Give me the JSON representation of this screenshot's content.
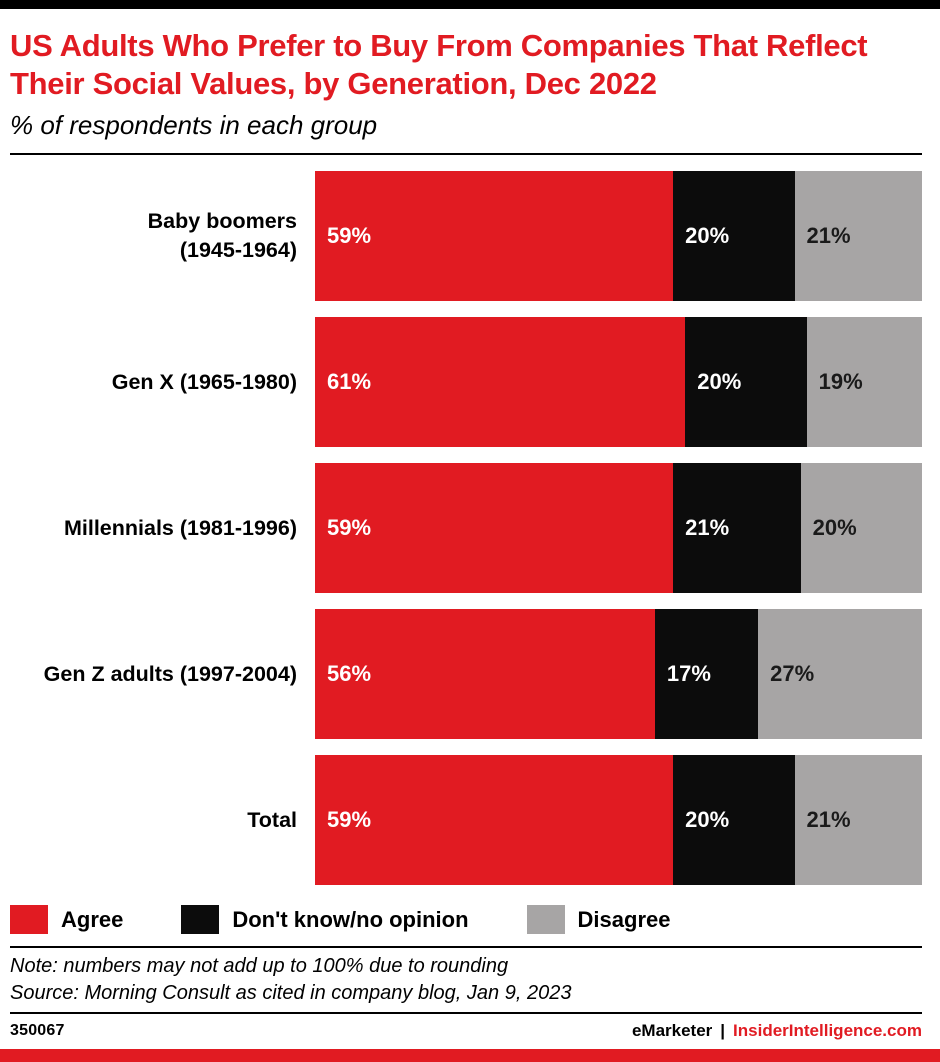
{
  "header": {
    "title": "US Adults Who Prefer to Buy From Companies That Reflect Their Social Values, by Generation, Dec 2022",
    "subtitle": "% of respondents in each group"
  },
  "chart_data": {
    "type": "bar",
    "stacked": true,
    "orientation": "horizontal",
    "value_suffix": "%",
    "xlim": [
      0,
      100
    ],
    "grid": false,
    "legend_position": "bottom",
    "categories": [
      "Baby boomers\n(1945-1964)",
      "Gen X (1965-1980)",
      "Millennials (1981-1996)",
      "Gen Z adults (1997-2004)",
      "Total"
    ],
    "series": [
      {
        "key": "agree",
        "name": "Agree",
        "color": "#e11b22",
        "label_color": "#ffffff",
        "values": [
          59,
          61,
          59,
          56,
          59
        ]
      },
      {
        "key": "dont-know-no-opinion",
        "name": "Don't know/no opinion",
        "color": "#0c0c0c",
        "label_color": "#ffffff",
        "values": [
          20,
          20,
          21,
          17,
          20
        ]
      },
      {
        "key": "disagree",
        "name": "Disagree",
        "color": "#a7a5a5",
        "label_color": "#1a1a1a",
        "values": [
          21,
          19,
          20,
          27,
          21
        ]
      }
    ]
  },
  "footnotes": {
    "note": "Note: numbers may not add up to 100% due to rounding",
    "source": "Source: Morning Consult as cited in company blog, Jan 9, 2023"
  },
  "footer": {
    "chart_id": "350067",
    "brand_primary": "eMarketer",
    "separator": "|",
    "brand_secondary": "InsiderIntelligence.com"
  },
  "colors": {
    "accent_red": "#e11b22",
    "black": "#0c0c0c",
    "gray": "#a7a5a5",
    "top_bar": "#000000",
    "bottom_bar": "#e11b22"
  }
}
